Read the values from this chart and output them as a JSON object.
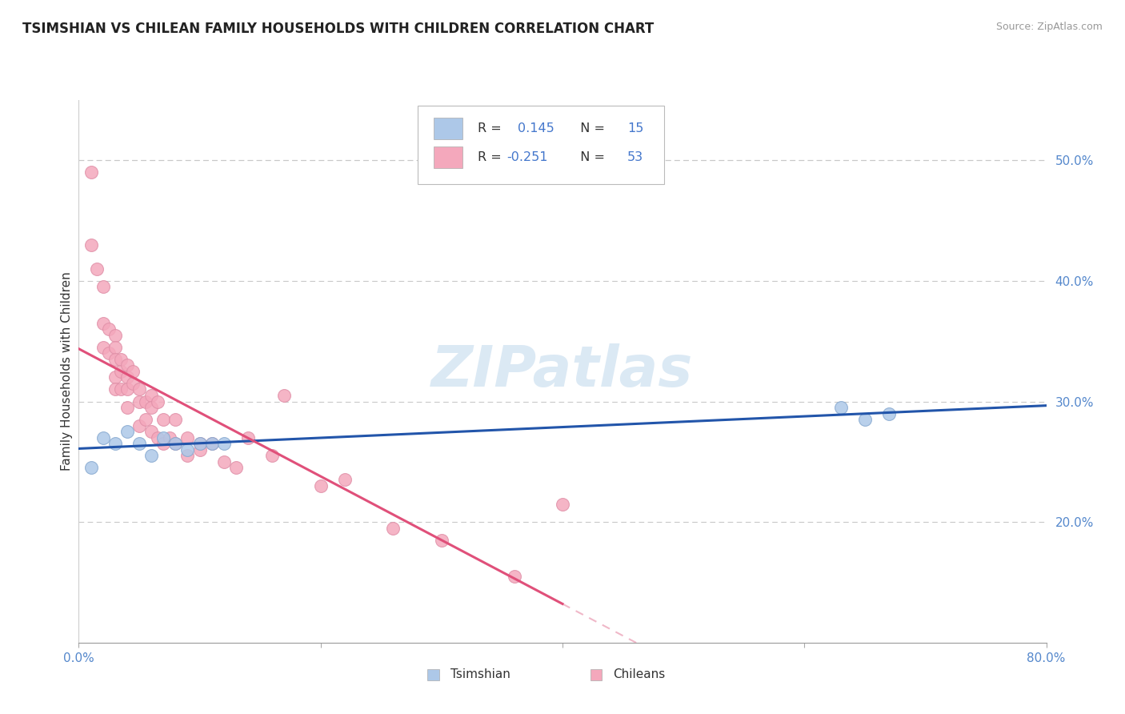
{
  "title": "TSIMSHIAN VS CHILEAN FAMILY HOUSEHOLDS WITH CHILDREN CORRELATION CHART",
  "source": "Source: ZipAtlas.com",
  "ylabel": "Family Households with Children",
  "xlim": [
    0.0,
    0.8
  ],
  "ylim": [
    0.1,
    0.55
  ],
  "xticks": [
    0.0,
    0.2,
    0.4,
    0.6,
    0.8
  ],
  "xticklabels": [
    "0.0%",
    "",
    "",
    "",
    "80.0%"
  ],
  "yticks": [
    0.2,
    0.3,
    0.4,
    0.5
  ],
  "yticklabels": [
    "20.0%",
    "30.0%",
    "40.0%",
    "50.0%"
  ],
  "grid_color": "#c8c8c8",
  "background_color": "#ffffff",
  "tsimshian_color": "#adc8e8",
  "chilean_color": "#f4a8bc",
  "tsimshian_line_color": "#2255aa",
  "chilean_line_color": "#e0507a",
  "chilean_dash_color": "#f0b8c8",
  "legend_R_tsimshian": "0.145",
  "legend_N_tsimshian": "15",
  "legend_R_chilean": "-0.251",
  "legend_N_chilean": "53",
  "watermark_color": "#cce0f0",
  "tsimshian_x": [
    0.01,
    0.02,
    0.03,
    0.04,
    0.05,
    0.06,
    0.07,
    0.08,
    0.09,
    0.1,
    0.11,
    0.12,
    0.63,
    0.65,
    0.67
  ],
  "tsimshian_y": [
    0.245,
    0.27,
    0.265,
    0.275,
    0.265,
    0.255,
    0.27,
    0.265,
    0.26,
    0.265,
    0.265,
    0.265,
    0.295,
    0.285,
    0.29
  ],
  "chilean_x": [
    0.01,
    0.01,
    0.015,
    0.02,
    0.02,
    0.02,
    0.025,
    0.025,
    0.03,
    0.03,
    0.03,
    0.03,
    0.03,
    0.035,
    0.035,
    0.035,
    0.04,
    0.04,
    0.04,
    0.04,
    0.045,
    0.045,
    0.05,
    0.05,
    0.05,
    0.055,
    0.055,
    0.06,
    0.06,
    0.06,
    0.065,
    0.065,
    0.07,
    0.07,
    0.075,
    0.08,
    0.08,
    0.09,
    0.09,
    0.1,
    0.1,
    0.11,
    0.12,
    0.13,
    0.14,
    0.16,
    0.17,
    0.2,
    0.22,
    0.26,
    0.3,
    0.36,
    0.4
  ],
  "chilean_y": [
    0.49,
    0.43,
    0.41,
    0.395,
    0.365,
    0.345,
    0.36,
    0.34,
    0.355,
    0.345,
    0.335,
    0.32,
    0.31,
    0.335,
    0.325,
    0.31,
    0.33,
    0.32,
    0.31,
    0.295,
    0.325,
    0.315,
    0.31,
    0.3,
    0.28,
    0.3,
    0.285,
    0.305,
    0.295,
    0.275,
    0.3,
    0.27,
    0.285,
    0.265,
    0.27,
    0.285,
    0.265,
    0.27,
    0.255,
    0.265,
    0.26,
    0.265,
    0.25,
    0.245,
    0.27,
    0.255,
    0.305,
    0.23,
    0.235,
    0.195,
    0.185,
    0.155,
    0.215
  ]
}
